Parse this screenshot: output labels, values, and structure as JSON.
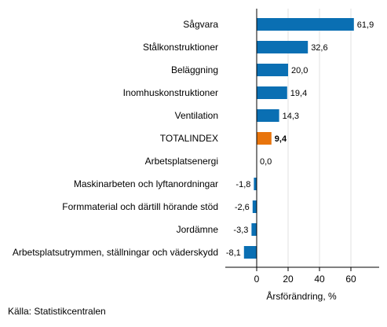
{
  "chart_data": {
    "type": "bar",
    "orientation": "horizontal",
    "categories": [
      "Sågvara",
      "Stålkonstruktioner",
      "Beläggning",
      "Inomhuskonstruktioner",
      "Ventilation",
      "TOTALINDEX",
      "Arbetsplatsenergi",
      "Maskinarbeten och lyftanordningar",
      "Formmaterial och därtill hörande stöd",
      "Jordämne",
      "Arbetsplatsutrymmen, ställningar och väderskydd"
    ],
    "values": [
      61.9,
      32.6,
      20.0,
      19.4,
      14.3,
      9.4,
      0.0,
      -1.8,
      -2.6,
      -3.3,
      -8.1
    ],
    "value_labels": [
      "61,9",
      "32,6",
      "20,0",
      "19,4",
      "14,3",
      "9,4",
      "0,0",
      "-1,8",
      "-2,6",
      "-3,3",
      "-8,1"
    ],
    "highlight_category": "TOTALINDEX",
    "xlabel": "Årsförändring, %",
    "ylabel": "",
    "xlim": [
      -20,
      78
    ],
    "xticks": [
      0,
      20,
      40,
      60
    ],
    "grid": "vertical",
    "legend": "none",
    "colors": {
      "bar": "#0a6fb3",
      "highlight": "#e8740c",
      "grid": "#e2e2e2",
      "axis": "#000000"
    }
  },
  "source": "Källa: Statistikcentralen"
}
